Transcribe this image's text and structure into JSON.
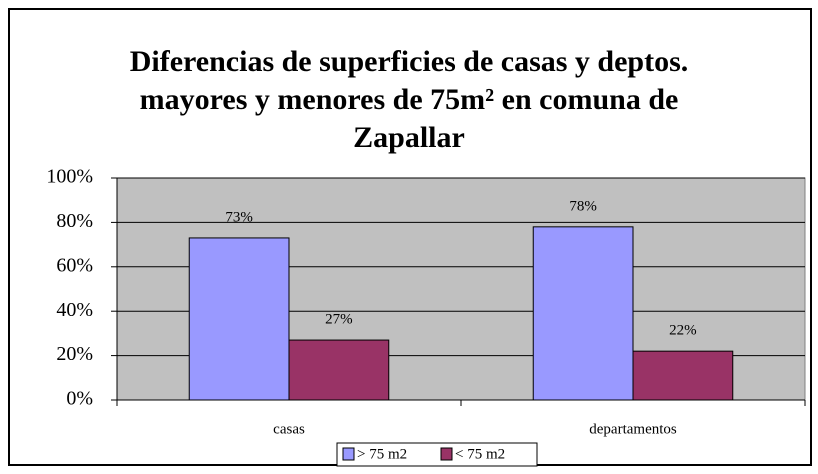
{
  "chart_data": {
    "type": "bar",
    "title": [
      "Diferencias de superficies de casas y deptos.",
      "mayores y menores de 75m² en comuna de",
      "Zapallar"
    ],
    "categories": [
      "casas",
      "departamentos"
    ],
    "series": [
      {
        "name": "> 75 m2",
        "color": "#9999ff",
        "values": [
          73,
          78
        ],
        "value_labels": [
          "73%",
          "78%"
        ]
      },
      {
        "name": "< 75 m2",
        "color": "#993366",
        "values": [
          27,
          22
        ],
        "value_labels": [
          "27%",
          "22%"
        ]
      }
    ],
    "ylim": [
      0,
      100
    ],
    "yticks": [
      {
        "value": 0,
        "label": "0%"
      },
      {
        "value": 20,
        "label": "20%"
      },
      {
        "value": 40,
        "label": "40%"
      },
      {
        "value": 60,
        "label": "60%"
      },
      {
        "value": 80,
        "label": "80%"
      },
      {
        "value": 100,
        "label": "100%"
      }
    ],
    "grid": true,
    "legend": "bottom",
    "plot_background": "#c0c0c0"
  }
}
